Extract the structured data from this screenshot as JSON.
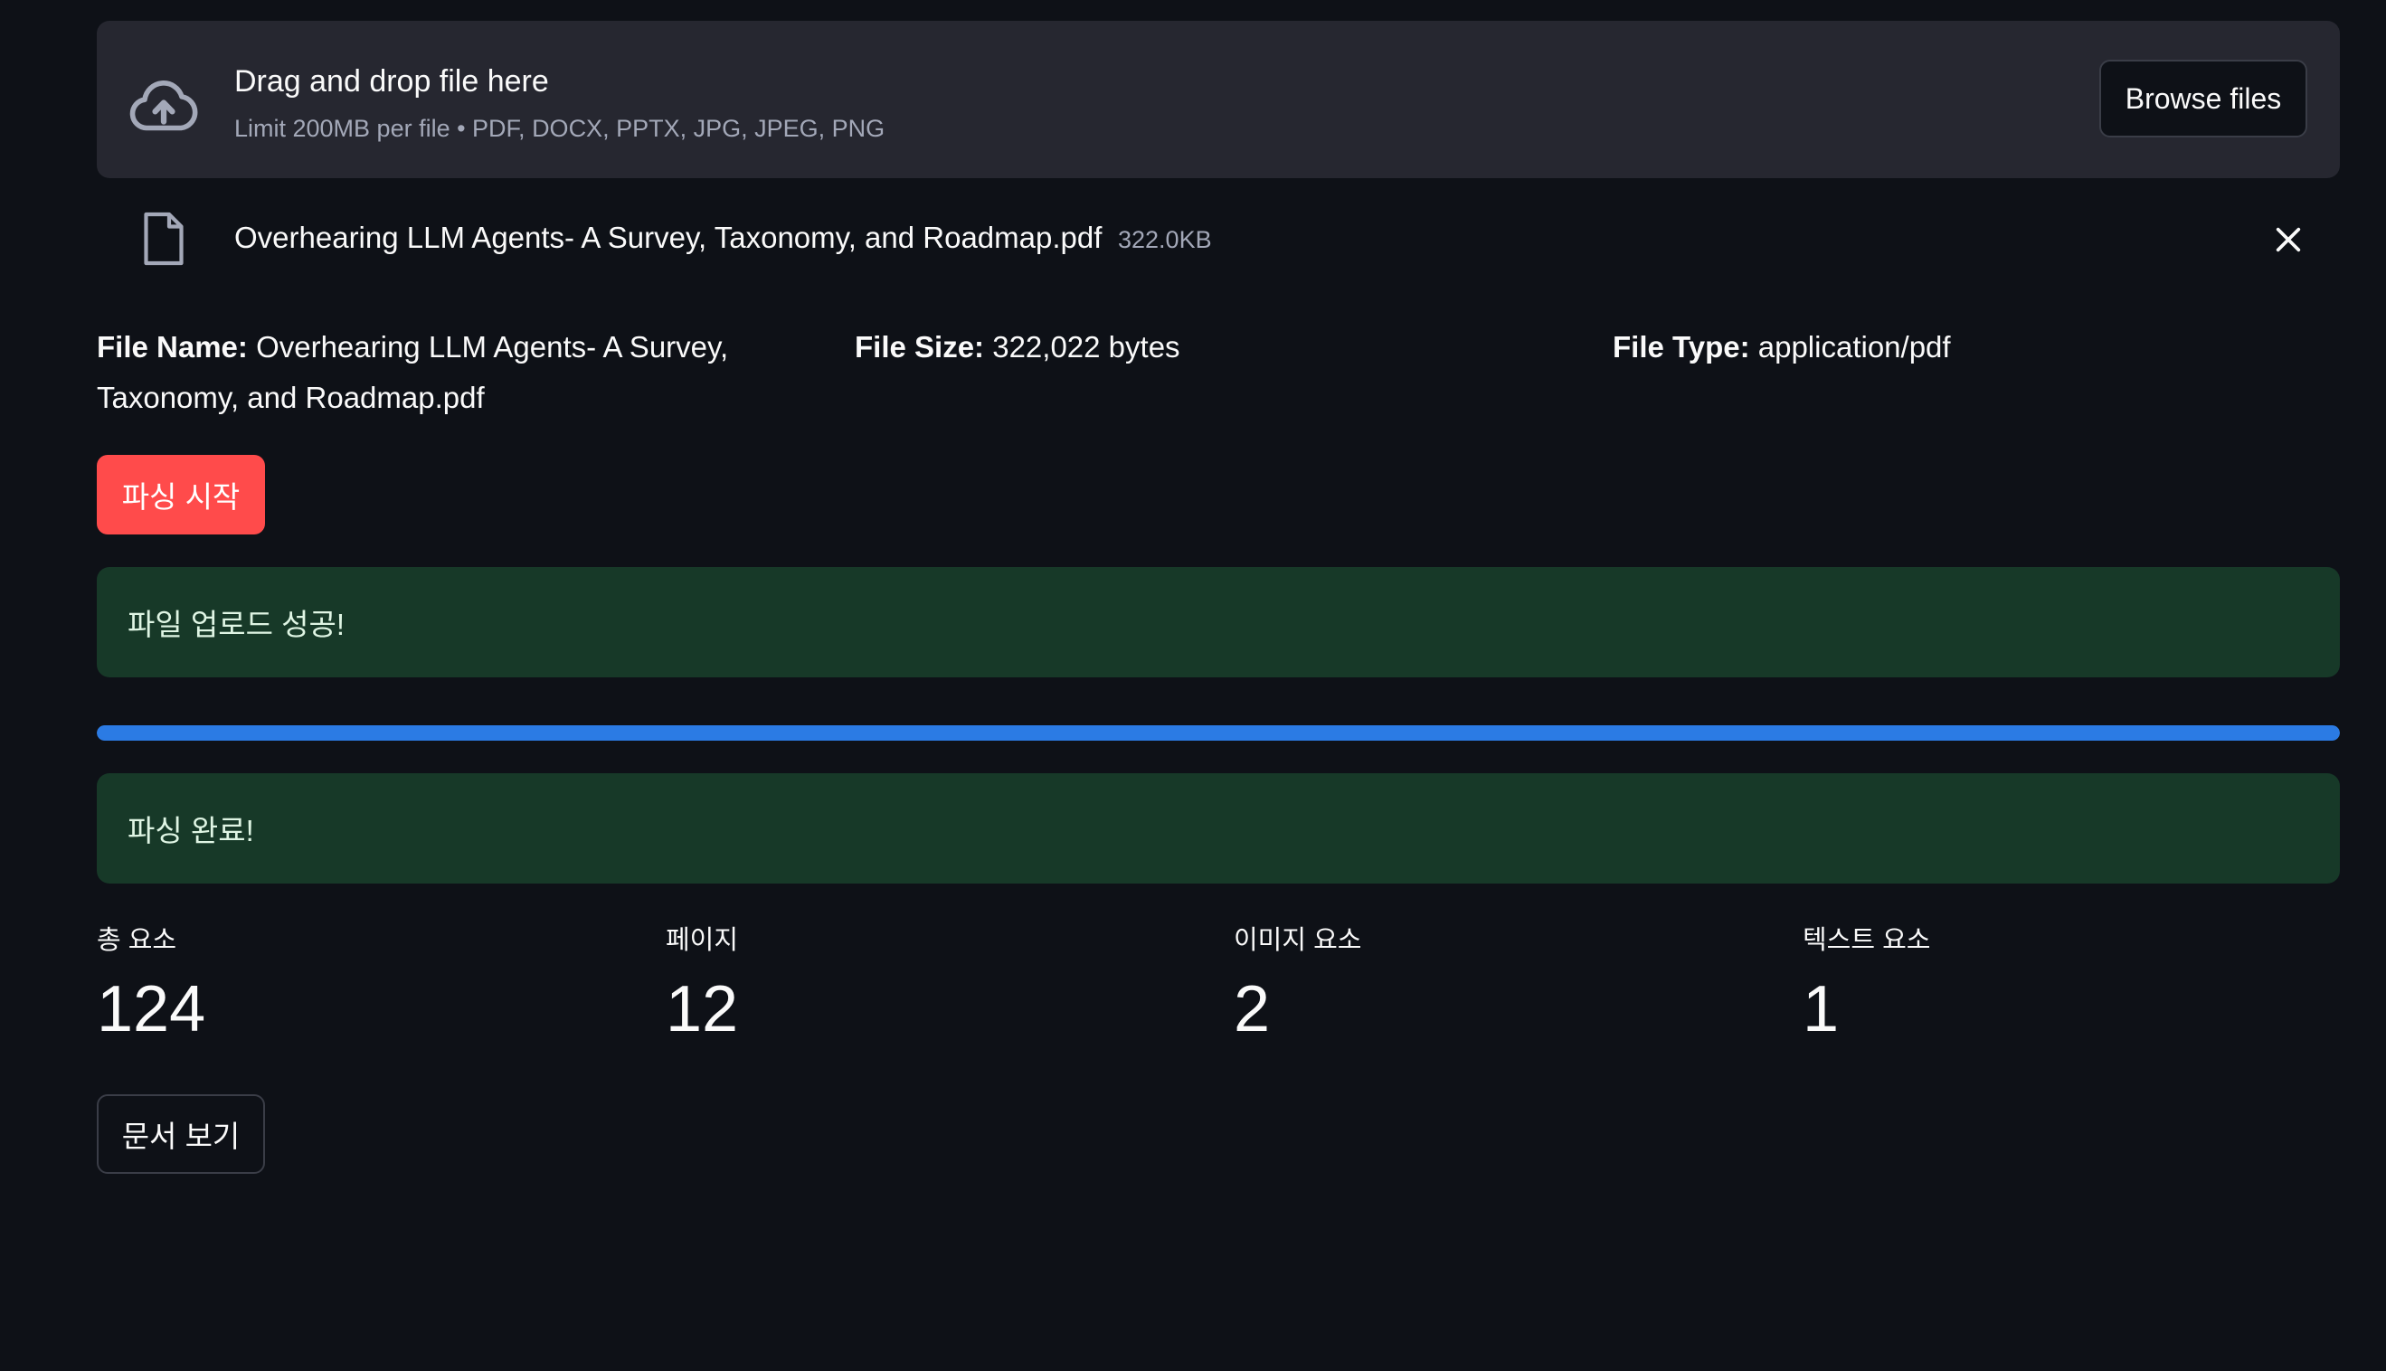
{
  "uploader": {
    "title": "Drag and drop file here",
    "subtitle": "Limit 200MB per file • PDF, DOCX, PPTX, JPG, JPEG, PNG",
    "browse_label": "Browse files",
    "icon": "cloud-upload-icon"
  },
  "uploaded_file": {
    "name": "Overhearing LLM Agents- A Survey, Taxonomy, and Roadmap.pdf",
    "size": "322.0KB",
    "icon": "file-icon",
    "remove_icon": "close-icon"
  },
  "file_info": {
    "name_label": "File Name:",
    "name_value": "Overhearing LLM Agents- A Survey, Taxonomy, and Roadmap.pdf",
    "size_label": "File Size:",
    "size_value": "322,022 bytes",
    "type_label": "File Type:",
    "type_value": "application/pdf"
  },
  "actions": {
    "start_parsing": "파싱 시작",
    "view_document": "문서 보기"
  },
  "alerts": {
    "upload_success": "파일 업로드 성공!",
    "parse_complete": "파싱 완료!"
  },
  "progress": {
    "value": 1.0
  },
  "metrics": [
    {
      "label": "총 요소",
      "value": "124"
    },
    {
      "label": "페이지",
      "value": "12"
    },
    {
      "label": "이미지 요소",
      "value": "2"
    },
    {
      "label": "텍스트 요소",
      "value": "1"
    }
  ],
  "colors": {
    "background": "#0e1117",
    "primary": "#ff4b4b",
    "success_bg": "#173928",
    "progress": "#2b7be4"
  }
}
